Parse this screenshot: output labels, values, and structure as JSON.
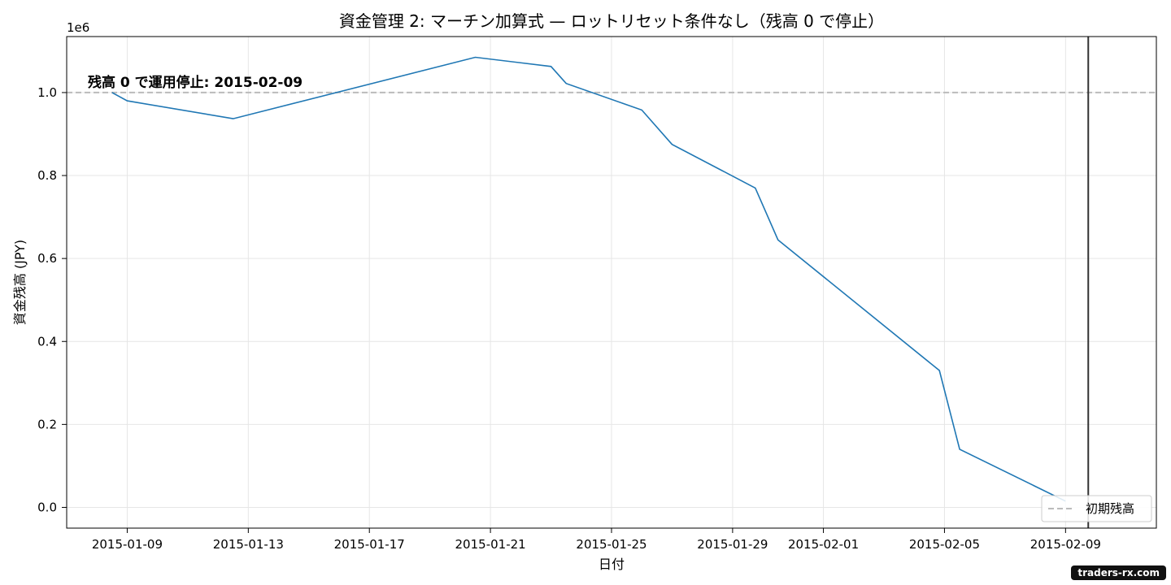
{
  "chart_data": {
    "type": "line",
    "title": "資金管理 2: マーチン加算式 — ロットリセット条件なし（残高 0 で停止）",
    "xlabel": "日付",
    "ylabel": "資金残高 (JPY)",
    "y_offset_label": "1e6",
    "xlim": [
      "2015-01-07",
      "2015-02-12"
    ],
    "ylim": [
      -0.05,
      1.135
    ],
    "yticks": [
      0.0,
      0.2,
      0.4,
      0.6,
      0.8,
      1.0
    ],
    "ytick_labels": [
      "0.0",
      "0.2",
      "0.4",
      "0.6",
      "0.8",
      "1.0"
    ],
    "xticks": [
      "2015-01-09",
      "2015-01-13",
      "2015-01-17",
      "2015-01-21",
      "2015-01-25",
      "2015-01-29",
      "2015-02-01",
      "2015-02-05",
      "2015-02-09"
    ],
    "grid": true,
    "series": [
      {
        "name": "",
        "color": "#1f77b4",
        "x": [
          "2015-01-08T12:00",
          "2015-01-09",
          "2015-01-12T12:00",
          "2015-01-20T12:00",
          "2015-01-23",
          "2015-01-23T12:00",
          "2015-01-26",
          "2015-01-27",
          "2015-01-29T18:00",
          "2015-01-30T12:00",
          "2015-02-04T20:00",
          "2015-02-05T12:00",
          "2015-02-09"
        ],
        "y": [
          1.0,
          0.98,
          0.937,
          1.085,
          1.063,
          1.022,
          0.958,
          0.875,
          0.77,
          0.645,
          0.33,
          0.14,
          0.015
        ]
      }
    ],
    "reference_lines": [
      {
        "type": "horizontal",
        "y": 1.0,
        "style": "dashed",
        "color": "#bbbbbb",
        "label": "初期残高"
      },
      {
        "type": "vertical",
        "x": "2015-02-09T18:00",
        "style": "solid",
        "color": "#333333"
      }
    ],
    "annotation": {
      "text": "残高 0 で運用停止: 2015-02-09"
    },
    "legend": {
      "placement": "lower-right",
      "entries": [
        "初期残高"
      ]
    }
  },
  "watermark": "traders-rx.com"
}
